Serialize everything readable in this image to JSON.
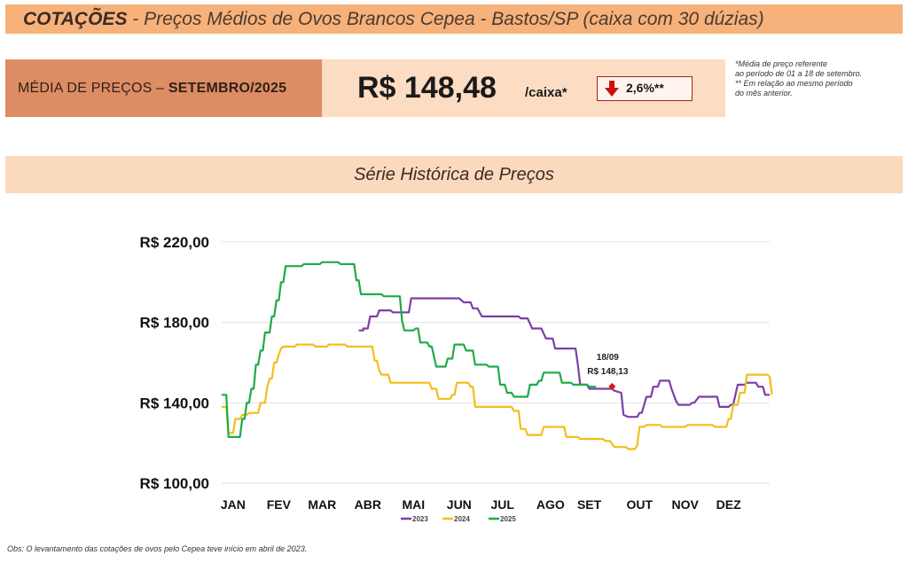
{
  "header": {
    "title_bold": "COTAÇÕES",
    "title_rest": " - Preços Médios de Ovos Brancos Cepea - Bastos/SP (caixa com 30 dúzias)"
  },
  "average": {
    "label_prefix": "MÉDIA DE PREÇOS – ",
    "label_period": "SETEMBRO/2025",
    "price": "R$ 148,48",
    "unit": "/caixa*",
    "change": "2,6%**",
    "change_direction": "down",
    "change_color": "#d01010"
  },
  "notes": [
    "*Média de preço referente",
    "ao período de 01 a 18 de setembro.",
    "** Em relação ao mesmo período",
    "do mês anterior."
  ],
  "series_header": "Série Histórica de Preços",
  "obs": "Obs: O levantamento das cotações de ovos pelo Cepea teve início em abril de 2023.",
  "chart_data": {
    "type": "line",
    "x_unit": "month (0 = start of January, 12 = end of December)",
    "categories": [
      "JAN",
      "FEV",
      "MAR",
      "ABR",
      "MAI",
      "JUN",
      "JUL",
      "AGO",
      "SET",
      "OUT",
      "NOV",
      "DEZ"
    ],
    "ylim": [
      100,
      220
    ],
    "yticks": [
      "R$ 100,00",
      "R$ 140,00",
      "R$ 180,00",
      "R$ 220,00"
    ],
    "ytick_values": [
      100,
      140,
      180,
      220
    ],
    "grid": "horizontal",
    "legend_position": "bottom",
    "annotation": {
      "date": "18/09",
      "value_label": "R$ 148,13",
      "x": 8.55,
      "y": 148.13,
      "color": "#e01010"
    },
    "series": [
      {
        "name": "2023",
        "color": "#7b3fa7",
        "points": [
          [
            3.0,
            176
          ],
          [
            3.1,
            176
          ],
          [
            3.1,
            177
          ],
          [
            3.2,
            177
          ],
          [
            3.25,
            183
          ],
          [
            3.4,
            183
          ],
          [
            3.45,
            186
          ],
          [
            3.7,
            186
          ],
          [
            3.75,
            185
          ],
          [
            4.1,
            185
          ],
          [
            4.15,
            192
          ],
          [
            5.2,
            192
          ],
          [
            5.3,
            190
          ],
          [
            5.45,
            190
          ],
          [
            5.5,
            187
          ],
          [
            5.6,
            187
          ],
          [
            5.7,
            183
          ],
          [
            6.5,
            183
          ],
          [
            6.55,
            182
          ],
          [
            6.7,
            182
          ],
          [
            6.8,
            177
          ],
          [
            7.0,
            177
          ],
          [
            7.1,
            172
          ],
          [
            7.25,
            172
          ],
          [
            7.3,
            167
          ],
          [
            7.75,
            167
          ],
          [
            7.8,
            159
          ],
          [
            7.85,
            149
          ],
          [
            8.0,
            149
          ],
          [
            8.05,
            147
          ],
          [
            8.55,
            147
          ],
          [
            8.6,
            146
          ],
          [
            8.75,
            145
          ],
          [
            8.8,
            134
          ],
          [
            8.9,
            133
          ],
          [
            9.1,
            133
          ],
          [
            9.15,
            135
          ],
          [
            9.2,
            135
          ],
          [
            9.3,
            143
          ],
          [
            9.4,
            143
          ],
          [
            9.45,
            148
          ],
          [
            9.55,
            148
          ],
          [
            9.6,
            151
          ],
          [
            9.8,
            151
          ],
          [
            9.85,
            147
          ],
          [
            9.95,
            141
          ],
          [
            10.0,
            139
          ],
          [
            10.25,
            139
          ],
          [
            10.3,
            140
          ],
          [
            10.35,
            140
          ],
          [
            10.45,
            143
          ],
          [
            10.85,
            143
          ],
          [
            10.9,
            138
          ],
          [
            11.1,
            138
          ],
          [
            11.15,
            139
          ],
          [
            11.2,
            139
          ],
          [
            11.3,
            149
          ],
          [
            11.45,
            149
          ],
          [
            11.5,
            150
          ],
          [
            11.7,
            150
          ],
          [
            11.75,
            148
          ],
          [
            11.85,
            148
          ],
          [
            11.9,
            144
          ],
          [
            12.0,
            144
          ]
        ]
      },
      {
        "name": "2024",
        "color": "#f2be1a",
        "points": [
          [
            0.0,
            138
          ],
          [
            0.1,
            138
          ],
          [
            0.15,
            125
          ],
          [
            0.25,
            125
          ],
          [
            0.3,
            132
          ],
          [
            0.4,
            132
          ],
          [
            0.45,
            134
          ],
          [
            0.55,
            134
          ],
          [
            0.6,
            135
          ],
          [
            0.8,
            135
          ],
          [
            0.85,
            140
          ],
          [
            0.95,
            140
          ],
          [
            1.0,
            148
          ],
          [
            1.05,
            152
          ],
          [
            1.1,
            152
          ],
          [
            1.15,
            160
          ],
          [
            1.2,
            160
          ],
          [
            1.25,
            164
          ],
          [
            1.3,
            167
          ],
          [
            1.35,
            168
          ],
          [
            1.6,
            168
          ],
          [
            1.65,
            169
          ],
          [
            2.0,
            169
          ],
          [
            2.05,
            168
          ],
          [
            2.3,
            168
          ],
          [
            2.35,
            169
          ],
          [
            2.7,
            169
          ],
          [
            2.75,
            168
          ],
          [
            3.3,
            168
          ],
          [
            3.35,
            161
          ],
          [
            3.4,
            161
          ],
          [
            3.45,
            156
          ],
          [
            3.5,
            154
          ],
          [
            3.65,
            154
          ],
          [
            3.7,
            150
          ],
          [
            4.55,
            150
          ],
          [
            4.6,
            147
          ],
          [
            4.7,
            147
          ],
          [
            4.75,
            142
          ],
          [
            5.0,
            142
          ],
          [
            5.05,
            144
          ],
          [
            5.1,
            144
          ],
          [
            5.15,
            150
          ],
          [
            5.4,
            150
          ],
          [
            5.45,
            148
          ],
          [
            5.5,
            148
          ],
          [
            5.55,
            138
          ],
          [
            6.35,
            138
          ],
          [
            6.4,
            136
          ],
          [
            6.5,
            136
          ],
          [
            6.55,
            127
          ],
          [
            6.65,
            127
          ],
          [
            6.7,
            124
          ],
          [
            7.0,
            124
          ],
          [
            7.05,
            128
          ],
          [
            7.5,
            128
          ],
          [
            7.55,
            123
          ],
          [
            7.8,
            123
          ],
          [
            7.85,
            122
          ],
          [
            8.35,
            122
          ],
          [
            8.4,
            121
          ],
          [
            8.5,
            121
          ],
          [
            8.6,
            118
          ],
          [
            8.85,
            118
          ],
          [
            8.9,
            117
          ],
          [
            9.05,
            117
          ],
          [
            9.1,
            119
          ],
          [
            9.15,
            128
          ],
          [
            9.25,
            128
          ],
          [
            9.3,
            129
          ],
          [
            9.6,
            129
          ],
          [
            9.65,
            128
          ],
          [
            10.15,
            128
          ],
          [
            10.2,
            129
          ],
          [
            10.75,
            129
          ],
          [
            10.8,
            128
          ],
          [
            11.05,
            128
          ],
          [
            11.1,
            132
          ],
          [
            11.15,
            132
          ],
          [
            11.2,
            139
          ],
          [
            11.3,
            139
          ],
          [
            11.35,
            145
          ],
          [
            11.45,
            145
          ],
          [
            11.5,
            154
          ],
          [
            11.95,
            154
          ],
          [
            12.0,
            153
          ],
          [
            12.05,
            144
          ]
        ]
      },
      {
        "name": "2025",
        "color": "#1faa48",
        "points": [
          [
            0.0,
            144
          ],
          [
            0.1,
            144
          ],
          [
            0.15,
            123
          ],
          [
            0.4,
            123
          ],
          [
            0.45,
            132
          ],
          [
            0.5,
            132
          ],
          [
            0.55,
            140
          ],
          [
            0.6,
            140
          ],
          [
            0.65,
            147
          ],
          [
            0.7,
            147
          ],
          [
            0.75,
            159
          ],
          [
            0.8,
            159
          ],
          [
            0.85,
            166
          ],
          [
            0.9,
            166
          ],
          [
            0.95,
            175
          ],
          [
            1.05,
            175
          ],
          [
            1.1,
            183
          ],
          [
            1.15,
            183
          ],
          [
            1.2,
            191
          ],
          [
            1.25,
            191
          ],
          [
            1.3,
            200
          ],
          [
            1.35,
            200
          ],
          [
            1.4,
            208
          ],
          [
            1.75,
            208
          ],
          [
            1.8,
            209
          ],
          [
            2.15,
            209
          ],
          [
            2.2,
            210
          ],
          [
            2.55,
            210
          ],
          [
            2.6,
            209
          ],
          [
            2.9,
            209
          ],
          [
            2.95,
            201
          ],
          [
            3.0,
            201
          ],
          [
            3.05,
            194
          ],
          [
            3.5,
            194
          ],
          [
            3.55,
            193
          ],
          [
            3.9,
            193
          ],
          [
            3.95,
            181
          ],
          [
            4.0,
            176
          ],
          [
            4.2,
            176
          ],
          [
            4.25,
            177
          ],
          [
            4.3,
            177
          ],
          [
            4.35,
            170
          ],
          [
            4.5,
            170
          ],
          [
            4.55,
            168
          ],
          [
            4.6,
            168
          ],
          [
            4.7,
            158
          ],
          [
            4.9,
            158
          ],
          [
            4.95,
            162
          ],
          [
            5.05,
            162
          ],
          [
            5.1,
            169
          ],
          [
            5.3,
            169
          ],
          [
            5.35,
            166
          ],
          [
            5.5,
            166
          ],
          [
            5.55,
            159
          ],
          [
            5.8,
            159
          ],
          [
            5.85,
            158
          ],
          [
            6.05,
            158
          ],
          [
            6.1,
            149
          ],
          [
            6.2,
            149
          ],
          [
            6.25,
            145
          ],
          [
            6.35,
            145
          ],
          [
            6.4,
            143
          ],
          [
            6.7,
            143
          ],
          [
            6.75,
            149
          ],
          [
            6.9,
            149
          ],
          [
            6.95,
            151
          ],
          [
            7.0,
            151
          ],
          [
            7.05,
            155
          ],
          [
            7.4,
            155
          ],
          [
            7.45,
            150
          ],
          [
            7.65,
            150
          ],
          [
            7.7,
            149
          ],
          [
            8.0,
            149
          ],
          [
            8.05,
            148
          ],
          [
            8.2,
            148
          ]
        ]
      }
    ]
  }
}
